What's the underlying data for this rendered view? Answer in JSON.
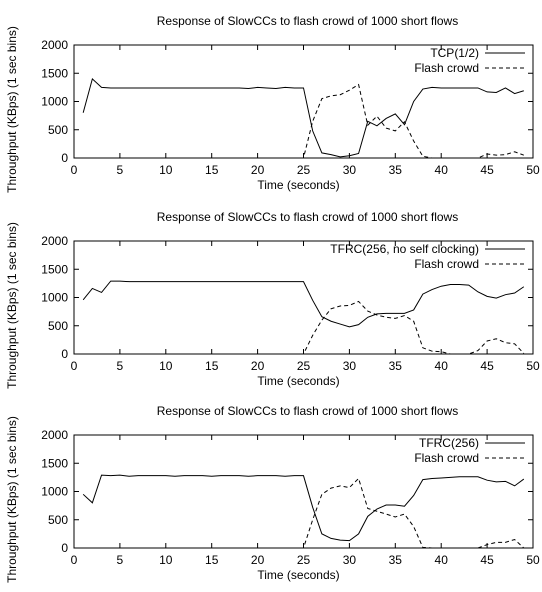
{
  "chart_data": [
    {
      "type": "line",
      "title": "Response of SlowCCs to flash crowd of 1000 short flows",
      "xlabel": "Time (seconds)",
      "ylabel": "Throughput (KBps) (1 sec bins)",
      "xlim": [
        0,
        50
      ],
      "ylim": [
        0,
        2000
      ],
      "xticks": [
        0,
        5,
        10,
        15,
        20,
        25,
        30,
        35,
        40,
        45,
        50
      ],
      "yticks": [
        0,
        500,
        1000,
        1500,
        2000
      ],
      "legend_position": "top-right",
      "series": [
        {
          "name": "TCP(1/2)",
          "style": "solid",
          "x": [
            1,
            2,
            3,
            4,
            5,
            6,
            7,
            8,
            9,
            10,
            11,
            12,
            13,
            14,
            15,
            16,
            17,
            18,
            19,
            20,
            21,
            22,
            23,
            24,
            25,
            26,
            27,
            28,
            29,
            30,
            31,
            32,
            33,
            34,
            35,
            36,
            37,
            38,
            39,
            40,
            41,
            42,
            43,
            44,
            45,
            46,
            47,
            48,
            49
          ],
          "y": [
            800,
            1400,
            1250,
            1240,
            1240,
            1240,
            1240,
            1240,
            1240,
            1240,
            1240,
            1240,
            1240,
            1240,
            1240,
            1240,
            1240,
            1240,
            1230,
            1250,
            1240,
            1230,
            1250,
            1240,
            1240,
            480,
            90,
            60,
            20,
            40,
            80,
            650,
            570,
            700,
            780,
            590,
            1000,
            1220,
            1250,
            1240,
            1240,
            1240,
            1240,
            1240,
            1170,
            1160,
            1240,
            1140,
            1190
          ]
        },
        {
          "name": "Flash crowd",
          "style": "dashed",
          "x": [
            1,
            2,
            3,
            4,
            5,
            6,
            7,
            8,
            9,
            10,
            11,
            12,
            13,
            14,
            15,
            16,
            17,
            18,
            19,
            20,
            21,
            22,
            23,
            24,
            25,
            26,
            27,
            28,
            29,
            30,
            31,
            32,
            33,
            34,
            35,
            36,
            37,
            38,
            39,
            40,
            41,
            42,
            43,
            44,
            45,
            46,
            47,
            48,
            49
          ],
          "y": [
            0,
            0,
            0,
            0,
            0,
            0,
            0,
            0,
            0,
            0,
            0,
            0,
            0,
            0,
            0,
            0,
            0,
            0,
            0,
            0,
            0,
            0,
            0,
            0,
            0,
            650,
            1050,
            1100,
            1120,
            1200,
            1300,
            580,
            740,
            530,
            480,
            640,
            300,
            30,
            0,
            0,
            0,
            0,
            0,
            0,
            70,
            50,
            60,
            110,
            50
          ]
        }
      ]
    },
    {
      "type": "line",
      "title": "Response of SlowCCs to flash crowd of 1000 short flows",
      "xlabel": "Time (seconds)",
      "ylabel": "Throughput (KBps) (1 sec bins)",
      "xlim": [
        0,
        50
      ],
      "ylim": [
        0,
        2000
      ],
      "xticks": [
        0,
        5,
        10,
        15,
        20,
        25,
        30,
        35,
        40,
        45,
        50
      ],
      "yticks": [
        0,
        500,
        1000,
        1500,
        2000
      ],
      "legend_position": "top-right",
      "series": [
        {
          "name": "TFRC(256, no self clocking)",
          "style": "solid",
          "x": [
            1,
            2,
            3,
            4,
            5,
            6,
            7,
            8,
            9,
            10,
            11,
            12,
            13,
            14,
            15,
            16,
            17,
            18,
            19,
            20,
            21,
            22,
            23,
            24,
            25,
            26,
            27,
            28,
            29,
            30,
            31,
            32,
            33,
            34,
            35,
            36,
            37,
            38,
            39,
            40,
            41,
            42,
            43,
            44,
            45,
            46,
            47,
            48,
            49
          ],
          "y": [
            960,
            1160,
            1090,
            1290,
            1290,
            1280,
            1280,
            1280,
            1280,
            1280,
            1280,
            1280,
            1280,
            1280,
            1280,
            1280,
            1280,
            1280,
            1280,
            1280,
            1280,
            1280,
            1280,
            1280,
            1280,
            950,
            660,
            580,
            530,
            480,
            520,
            650,
            710,
            720,
            720,
            720,
            780,
            1060,
            1140,
            1200,
            1230,
            1230,
            1220,
            1100,
            1020,
            990,
            1050,
            1080,
            1190
          ]
        },
        {
          "name": "Flash crowd",
          "style": "dashed",
          "x": [
            1,
            2,
            3,
            4,
            5,
            6,
            7,
            8,
            9,
            10,
            11,
            12,
            13,
            14,
            15,
            16,
            17,
            18,
            19,
            20,
            21,
            22,
            23,
            24,
            25,
            26,
            27,
            28,
            29,
            30,
            31,
            32,
            33,
            34,
            35,
            36,
            37,
            38,
            39,
            40,
            41,
            42,
            43,
            44,
            45,
            46,
            47,
            48,
            49
          ],
          "y": [
            0,
            0,
            0,
            0,
            0,
            0,
            0,
            0,
            0,
            0,
            0,
            0,
            0,
            0,
            0,
            0,
            0,
            0,
            0,
            0,
            0,
            0,
            0,
            0,
            0,
            330,
            600,
            800,
            850,
            860,
            930,
            760,
            690,
            650,
            630,
            680,
            580,
            110,
            50,
            40,
            0,
            0,
            0,
            60,
            230,
            270,
            200,
            180,
            10
          ]
        }
      ]
    },
    {
      "type": "line",
      "title": "Response of SlowCCs to flash crowd of 1000 short flows",
      "xlabel": "Time (seconds)",
      "ylabel": "Throughput (KBps) (1 sec bins)",
      "xlim": [
        0,
        50
      ],
      "ylim": [
        0,
        2000
      ],
      "xticks": [
        0,
        5,
        10,
        15,
        20,
        25,
        30,
        35,
        40,
        45,
        50
      ],
      "yticks": [
        0,
        500,
        1000,
        1500,
        2000
      ],
      "legend_position": "top-right",
      "series": [
        {
          "name": "TFRC(256)",
          "style": "solid",
          "x": [
            1,
            2,
            3,
            4,
            5,
            6,
            7,
            8,
            9,
            10,
            11,
            12,
            13,
            14,
            15,
            16,
            17,
            18,
            19,
            20,
            21,
            22,
            23,
            24,
            25,
            26,
            27,
            28,
            29,
            30,
            31,
            32,
            33,
            34,
            35,
            36,
            37,
            38,
            39,
            40,
            41,
            42,
            43,
            44,
            45,
            46,
            47,
            48,
            49
          ],
          "y": [
            950,
            800,
            1290,
            1280,
            1290,
            1270,
            1280,
            1280,
            1280,
            1280,
            1270,
            1280,
            1280,
            1280,
            1270,
            1280,
            1280,
            1280,
            1270,
            1280,
            1280,
            1280,
            1270,
            1280,
            1280,
            720,
            250,
            170,
            140,
            130,
            250,
            560,
            690,
            760,
            760,
            740,
            930,
            1210,
            1230,
            1240,
            1250,
            1260,
            1260,
            1260,
            1200,
            1170,
            1180,
            1100,
            1220
          ]
        },
        {
          "name": "Flash crowd",
          "style": "dashed",
          "x": [
            1,
            2,
            3,
            4,
            5,
            6,
            7,
            8,
            9,
            10,
            11,
            12,
            13,
            14,
            15,
            16,
            17,
            18,
            19,
            20,
            21,
            22,
            23,
            24,
            25,
            26,
            27,
            28,
            29,
            30,
            31,
            32,
            33,
            34,
            35,
            36,
            37,
            38,
            39,
            40,
            41,
            42,
            43,
            44,
            45,
            46,
            47,
            48,
            49
          ],
          "y": [
            0,
            0,
            0,
            0,
            0,
            0,
            0,
            0,
            0,
            0,
            0,
            0,
            0,
            0,
            0,
            0,
            0,
            0,
            0,
            0,
            0,
            0,
            0,
            0,
            0,
            500,
            950,
            1060,
            1100,
            1070,
            1230,
            700,
            650,
            600,
            550,
            600,
            380,
            10,
            0,
            0,
            0,
            0,
            0,
            0,
            60,
            100,
            100,
            150,
            0
          ]
        }
      ]
    }
  ]
}
